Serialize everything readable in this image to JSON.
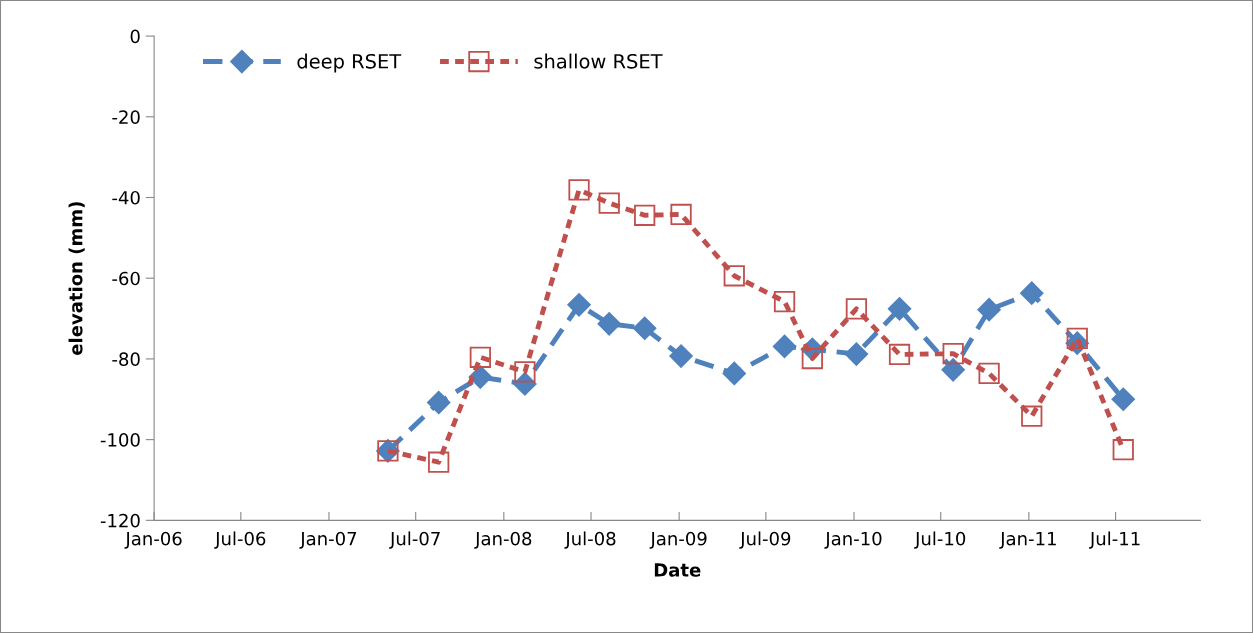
{
  "chart_data": {
    "type": "line",
    "xlabel": "Date",
    "ylabel": "elevation (mm)",
    "xlim": [
      "2006-01-01",
      "2011-12-25"
    ],
    "ylim": [
      -120,
      0
    ],
    "xticks": [
      {
        "value": "2006-01-01",
        "label": "Jan-06"
      },
      {
        "value": "2006-07-01",
        "label": "Jul-06"
      },
      {
        "value": "2007-01-01",
        "label": "Jan-07"
      },
      {
        "value": "2007-07-01",
        "label": "Jul-07"
      },
      {
        "value": "2008-01-01",
        "label": "Jan-08"
      },
      {
        "value": "2008-07-01",
        "label": "Jul-08"
      },
      {
        "value": "2009-01-01",
        "label": "Jan-09"
      },
      {
        "value": "2009-07-01",
        "label": "Jul-09"
      },
      {
        "value": "2010-01-01",
        "label": "Jan-10"
      },
      {
        "value": "2010-07-01",
        "label": "Jul-10"
      },
      {
        "value": "2011-01-01",
        "label": "Jan-11"
      },
      {
        "value": "2011-07-01",
        "label": "Jul-11"
      }
    ],
    "yticks": [
      -120,
      -100,
      -80,
      -60,
      -40,
      -20,
      0
    ],
    "grid": false,
    "legend": "top left",
    "series": [
      {
        "name": "deep RSET",
        "color": "#4f81bd",
        "marker": "diamond",
        "line_style": "dashed",
        "x": [
          "2007-05-04",
          "2007-08-18",
          "2007-11-13",
          "2008-02-14",
          "2008-06-06",
          "2008-08-08",
          "2008-10-21",
          "2009-01-05",
          "2009-04-26",
          "2009-08-09",
          "2009-10-06",
          "2010-01-06",
          "2010-04-06",
          "2010-07-27",
          "2010-10-10",
          "2011-01-07",
          "2011-04-12",
          "2011-07-17"
        ],
        "values": [
          -102.8,
          -90.8,
          -84.5,
          -86.2,
          -66.6,
          -71.3,
          -72.4,
          -79.3,
          -83.6,
          -76.9,
          -77.6,
          -78.8,
          -67.6,
          -82.7,
          -67.8,
          -63.7,
          -76.1,
          -90.0
        ]
      },
      {
        "name": "shallow RSET",
        "color": "#c0504d",
        "marker": "square",
        "line_style": "dotted",
        "x": [
          "2007-05-04",
          "2007-08-18",
          "2007-11-13",
          "2008-02-14",
          "2008-06-06",
          "2008-08-08",
          "2008-10-21",
          "2009-01-05",
          "2009-04-26",
          "2009-08-09",
          "2009-10-06",
          "2010-01-06",
          "2010-04-06",
          "2010-07-27",
          "2010-10-10",
          "2011-01-07",
          "2011-04-12",
          "2011-07-17"
        ],
        "values": [
          -102.8,
          -105.6,
          -79.6,
          -83.2,
          -38.1,
          -41.4,
          -44.4,
          -44.2,
          -59.4,
          -65.8,
          -79.9,
          -67.6,
          -78.9,
          -78.7,
          -83.6,
          -94.2,
          -74.9,
          -102.5
        ]
      }
    ]
  }
}
